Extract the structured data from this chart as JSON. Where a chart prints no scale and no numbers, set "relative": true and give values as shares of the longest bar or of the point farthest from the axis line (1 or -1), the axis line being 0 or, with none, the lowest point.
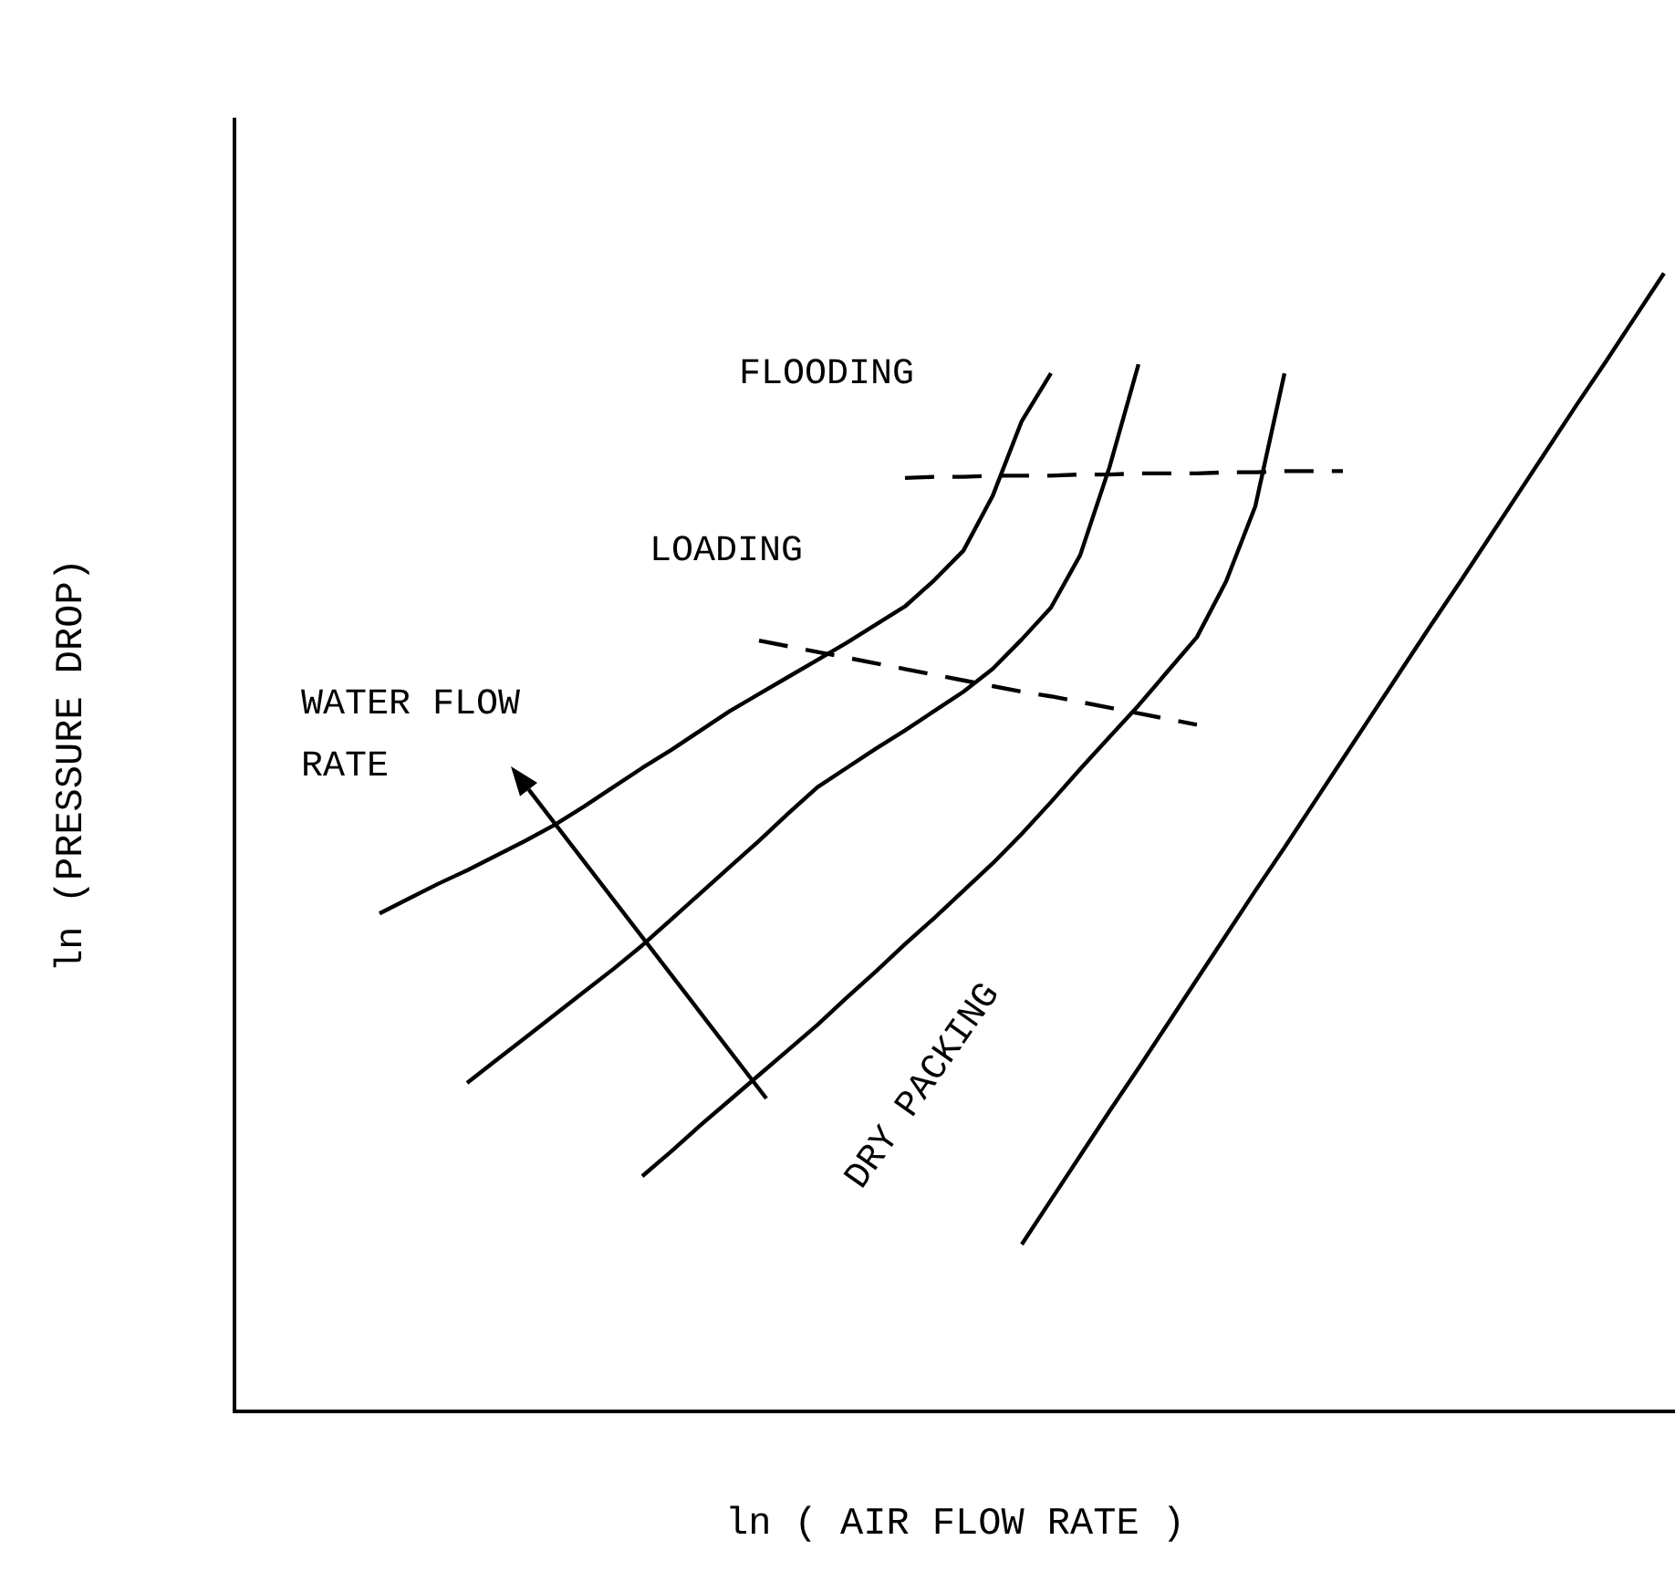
{
  "chart_data": {
    "type": "line",
    "relative": true,
    "xlabel": "ln ( AIR FLOW RATE )",
    "ylabel": "ln (PRESSURE DROP)",
    "marker": "none",
    "line_style": "solid",
    "grid": false,
    "tick_labels": false,
    "annotations": [
      "WATER FLOW RATE"
    ],
    "categories": [
      null,
      null,
      null,
      null,
      null,
      null,
      null,
      null,
      null,
      null,
      null,
      null,
      null,
      null,
      null,
      null,
      null,
      null,
      null,
      null,
      null,
      null,
      null,
      null,
      null,
      null,
      null,
      null,
      null,
      null,
      null,
      null,
      null,
      null,
      null,
      null,
      null,
      null,
      null,
      null,
      null,
      null,
      null,
      null,
      null,
      null,
      null,
      null,
      null,
      null
    ],
    "series": [
      {
        "color": "#000000",
        "values": [
          null,
          null,
          null,
          null,
          null,
          0.437,
          0.45,
          0.463,
          0.475,
          0.488,
          0.501,
          0.515,
          0.531,
          0.548,
          0.565,
          0.581,
          0.598,
          0.615,
          0.63,
          0.645,
          0.66,
          0.675,
          0.691,
          0.707,
          0.73,
          0.756,
          0.804,
          0.87,
          0.912,
          null,
          null,
          null,
          null,
          null,
          null,
          null,
          null,
          null,
          null,
          null,
          null,
          null,
          null,
          null,
          null,
          null,
          null,
          null,
          null,
          null
        ]
      },
      {
        "color": "#000000",
        "values": [
          null,
          null,
          null,
          null,
          null,
          null,
          null,
          null,
          0.288,
          0.308,
          0.328,
          0.348,
          0.368,
          0.388,
          0.409,
          0.432,
          0.455,
          0.478,
          0.501,
          0.525,
          0.548,
          0.565,
          0.582,
          0.598,
          0.615,
          0.632,
          0.652,
          0.678,
          0.706,
          0.752,
          0.829,
          0.92,
          null,
          null,
          null,
          null,
          null,
          null,
          null,
          null,
          null,
          null,
          null,
          null,
          null,
          null,
          null,
          null,
          null,
          null
        ]
      },
      {
        "color": "#000000",
        "values": [
          null,
          null,
          null,
          null,
          null,
          null,
          null,
          null,
          null,
          null,
          null,
          null,
          null,
          null,
          0.206,
          0.228,
          0.251,
          0.273,
          0.295,
          0.317,
          0.339,
          0.363,
          0.386,
          0.41,
          0.433,
          0.457,
          0.481,
          0.507,
          0.535,
          0.564,
          0.592,
          0.62,
          0.65,
          0.68,
          0.729,
          0.795,
          0.912,
          null,
          null,
          null,
          null,
          null,
          null,
          null,
          null,
          null,
          null,
          null,
          null,
          null
        ]
      },
      {
        "name": "DRY PACKING",
        "color": "#000000",
        "values": [
          null,
          null,
          null,
          null,
          null,
          null,
          null,
          null,
          null,
          null,
          null,
          null,
          null,
          null,
          null,
          null,
          null,
          null,
          null,
          null,
          null,
          null,
          null,
          null,
          null,
          null,
          null,
          0.146,
          0.185,
          0.224,
          0.263,
          0.301,
          0.34,
          0.379,
          0.418,
          0.457,
          0.495,
          0.534,
          0.573,
          0.612,
          0.651,
          0.69,
          0.728,
          0.767,
          0.806,
          0.845,
          0.884,
          0.922,
          0.961,
          1.0
        ]
      },
      {
        "name": "FLOODING",
        "color": "#000000",
        "line_style": "dashed",
        "values": [
          null,
          null,
          null,
          null,
          null,
          null,
          null,
          null,
          null,
          null,
          null,
          null,
          null,
          null,
          null,
          null,
          null,
          null,
          null,
          null,
          null,
          null,
          null,
          0.82,
          0.821,
          0.821,
          0.822,
          0.822,
          0.822,
          0.823,
          0.823,
          0.824,
          0.824,
          0.824,
          0.825,
          0.825,
          0.826,
          0.826,
          0.826,
          null,
          null,
          null,
          null,
          null,
          null,
          null,
          null,
          null,
          null,
          null
        ]
      },
      {
        "name": "LOADING",
        "color": "#000000",
        "line_style": "dashed",
        "values": [
          null,
          null,
          null,
          null,
          null,
          null,
          null,
          null,
          null,
          null,
          null,
          null,
          null,
          null,
          null,
          null,
          null,
          null,
          0.677,
          0.672,
          0.667,
          0.662,
          0.657,
          0.652,
          0.647,
          0.642,
          0.637,
          0.632,
          0.628,
          0.623,
          0.618,
          0.613,
          0.608,
          0.603,
          null,
          null,
          null,
          null,
          null,
          null,
          null,
          null,
          null,
          null,
          null,
          null,
          null,
          null,
          null,
          null
        ]
      }
    ]
  }
}
